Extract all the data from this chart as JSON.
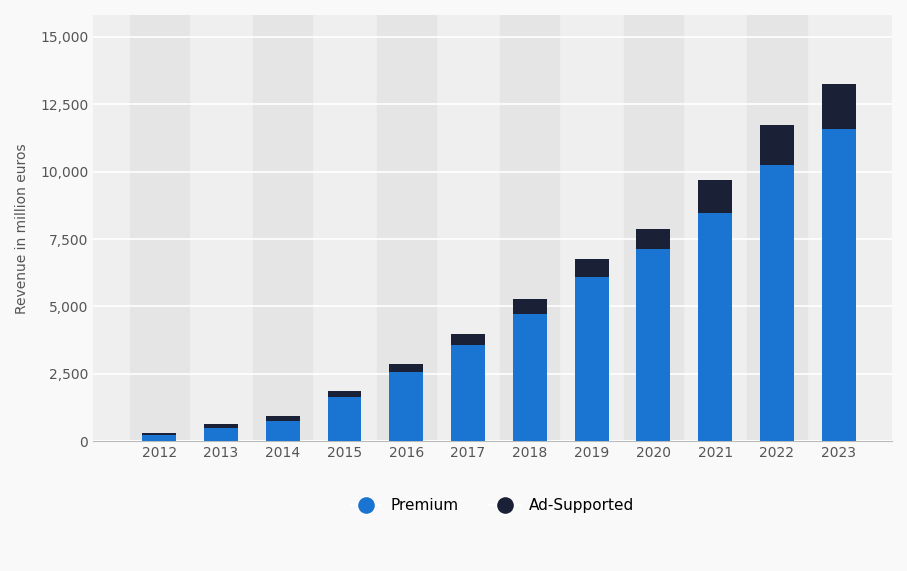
{
  "years": [
    2012,
    2013,
    2014,
    2015,
    2016,
    2017,
    2018,
    2019,
    2020,
    2021,
    2022,
    2023
  ],
  "premium": [
    256,
    500,
    772,
    1630,
    2568,
    3567,
    4717,
    6090,
    7135,
    8461,
    10248,
    11561
  ],
  "ad_supported": [
    56,
    141,
    185,
    226,
    295,
    416,
    543,
    678,
    745,
    1208,
    1468,
    1678
  ],
  "premium_color": "#1a75d2",
  "ad_supported_color": "#1a2035",
  "background_color": "#f9f9f9",
  "plot_bg_color": "#efefef",
  "column_alt_color": "#e5e5e5",
  "ylabel": "Revenue in million euros",
  "yticks": [
    0,
    2500,
    5000,
    7500,
    10000,
    12500,
    15000
  ],
  "ylim": [
    0,
    15800
  ],
  "grid_color": "#ffffff",
  "bar_width": 0.55,
  "legend_labels": [
    "Premium",
    "Ad-Supported"
  ]
}
